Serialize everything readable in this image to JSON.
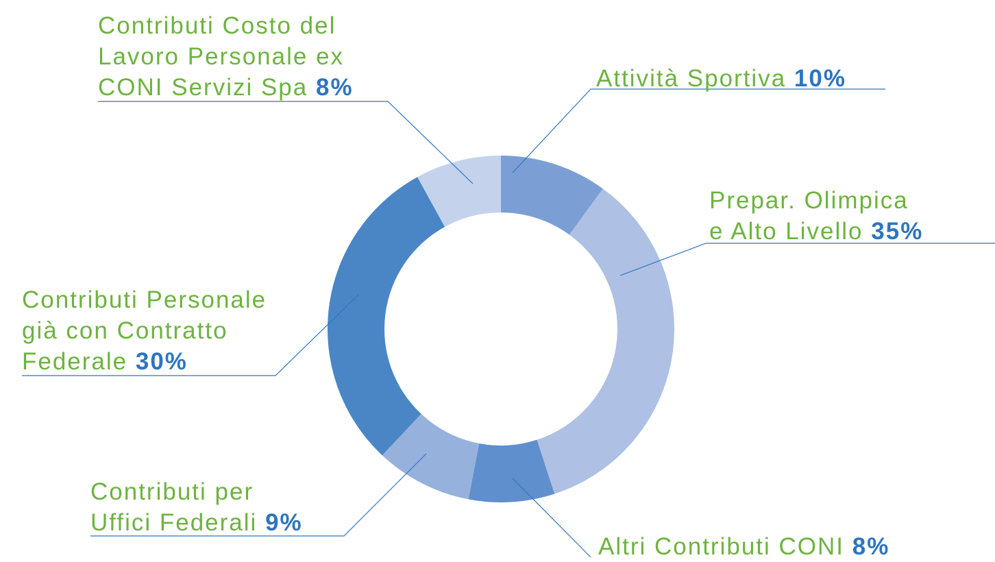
{
  "chart_data": {
    "type": "donut",
    "categories": [
      "Attività Sportiva",
      "Prepar. Olimpica\ne Alto Livello",
      "Altri Contributi CONI",
      "Contributi per\nUffici Federali",
      "Contributi Personale\ngià con Contratto\nFederale",
      "Contributi Costo del\nLavoro Personale ex\nCONI Servizi Spa"
    ],
    "values": [
      10,
      35,
      8,
      9,
      30,
      8
    ],
    "value_labels": [
      "10%",
      "35%",
      "8%",
      "9%",
      "30%",
      "8%"
    ],
    "colors": [
      "#7b9fd4",
      "#aec0e3",
      "#5f8fcd",
      "#97b1dd",
      "#4a86c6",
      "#c4d2ec"
    ]
  }
}
